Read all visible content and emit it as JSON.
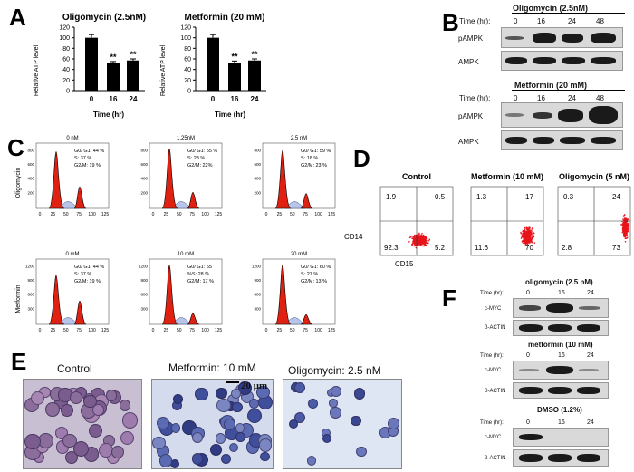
{
  "panels": {
    "a": "A",
    "b": "B",
    "c": "C",
    "d": "D",
    "e": "E",
    "f": "F"
  },
  "panel_a": {
    "ylabel": "Relative ATP level",
    "xlabel": "Time (hr)",
    "sig": "**",
    "yticks": [
      "0",
      "20",
      "40",
      "60",
      "80",
      "100",
      "120"
    ],
    "chart_data": [
      {
        "type": "bar",
        "title": "Oligomycin (2.5nM)",
        "categories": [
          "0",
          "16",
          "24"
        ],
        "values": [
          100,
          52,
          57
        ],
        "errors": [
          6,
          3,
          3
        ],
        "ylim": [
          0,
          120
        ],
        "xlabel": "Time (hr)",
        "ylabel": "Relative ATP level"
      },
      {
        "type": "bar",
        "title": "Metformin (20 mM)",
        "categories": [
          "0",
          "16",
          "24"
        ],
        "values": [
          100,
          53,
          57
        ],
        "errors": [
          6,
          3,
          3
        ],
        "ylim": [
          0,
          120
        ],
        "xlabel": "Time (hr)",
        "ylabel": "Relative ATP level"
      }
    ]
  },
  "panel_b": {
    "time_label": "Time (hr):",
    "blots": [
      {
        "title": "Oligomycin (2.5nM)",
        "times": [
          "0",
          "16",
          "24",
          "48"
        ],
        "rows": [
          "pAMPK",
          "AMPK"
        ]
      },
      {
        "title": "Metformin (20 mM)",
        "times": [
          "0",
          "16",
          "24",
          "48"
        ],
        "rows": [
          "pAMPK",
          "AMPK"
        ]
      }
    ]
  },
  "panel_c": {
    "row_labels": [
      "Oligomycin",
      "Metformin"
    ],
    "xticks": [
      "0",
      "25",
      "50",
      "75",
      "100",
      "125"
    ],
    "yticks_a": [
      "200",
      "400",
      "600",
      "800"
    ],
    "yticks_b": [
      "300",
      "600",
      "900",
      "1200"
    ],
    "plots": [
      {
        "title": "0 nM",
        "l1": "G0/ G1: 44 %",
        "l2": "S: 37 %",
        "l3": "G2/M: 19 %"
      },
      {
        "title": "1.25nM",
        "l1": "G0/ G1: 55 %",
        "l2": "S: 23 %",
        "l3": "G2/M: 22%"
      },
      {
        "title": "2.5 nM",
        "l1": "G0/ G1: 59 %",
        "l2": "S: 18 %",
        "l3": "G2/M: 23 %"
      },
      {
        "title": "0 mM",
        "l1": "G0/ G1: 44 %",
        "l2": "S: 37 %",
        "l3": "G2/M: 19 %"
      },
      {
        "title": "10 mM",
        "l1": "G0/ G1: 55",
        "l2": "%S: 28 %",
        "l3": "G2/M: 17 %"
      },
      {
        "title": "20 mM",
        "l1": "G0/ G1: 60 %",
        "l2": "S: 27 %",
        "l3": "G2/M: 13 %"
      }
    ]
  },
  "panel_d": {
    "xlabel": "CD15",
    "ylabel": "CD14",
    "plots": [
      {
        "title": "Control",
        "q": [
          "1.9",
          "0.5",
          "92.3",
          "5.2"
        ]
      },
      {
        "title": "Metformin  (10 mM)",
        "q": [
          "1.3",
          "17",
          "11.6",
          "70"
        ]
      },
      {
        "title": "Oligomycin  (5 nM)",
        "q": [
          "0.3",
          "24",
          "2.8",
          "73"
        ]
      }
    ]
  },
  "panel_e": {
    "labels": [
      "Control",
      "Metformin:  10 mM",
      "Oligomycin:  2.5 nM"
    ],
    "scale": "20 μm"
  },
  "panel_f": {
    "time_label": "Time (hr):",
    "blots": [
      {
        "title": "oligomycin (2.5 nM)",
        "times": [
          "0",
          "16",
          "24"
        ],
        "rows": [
          "c-MYC",
          "β-ACTIN"
        ]
      },
      {
        "title": "metformin (10 mM)",
        "times": [
          "0",
          "16",
          "24"
        ],
        "rows": [
          "c-MYC",
          "β-ACTIN"
        ]
      },
      {
        "title": "DMSO (1.2%)",
        "times": [
          "0",
          "16",
          "24"
        ],
        "rows": [
          "c-MYC",
          "β-ACTIN"
        ]
      }
    ]
  }
}
